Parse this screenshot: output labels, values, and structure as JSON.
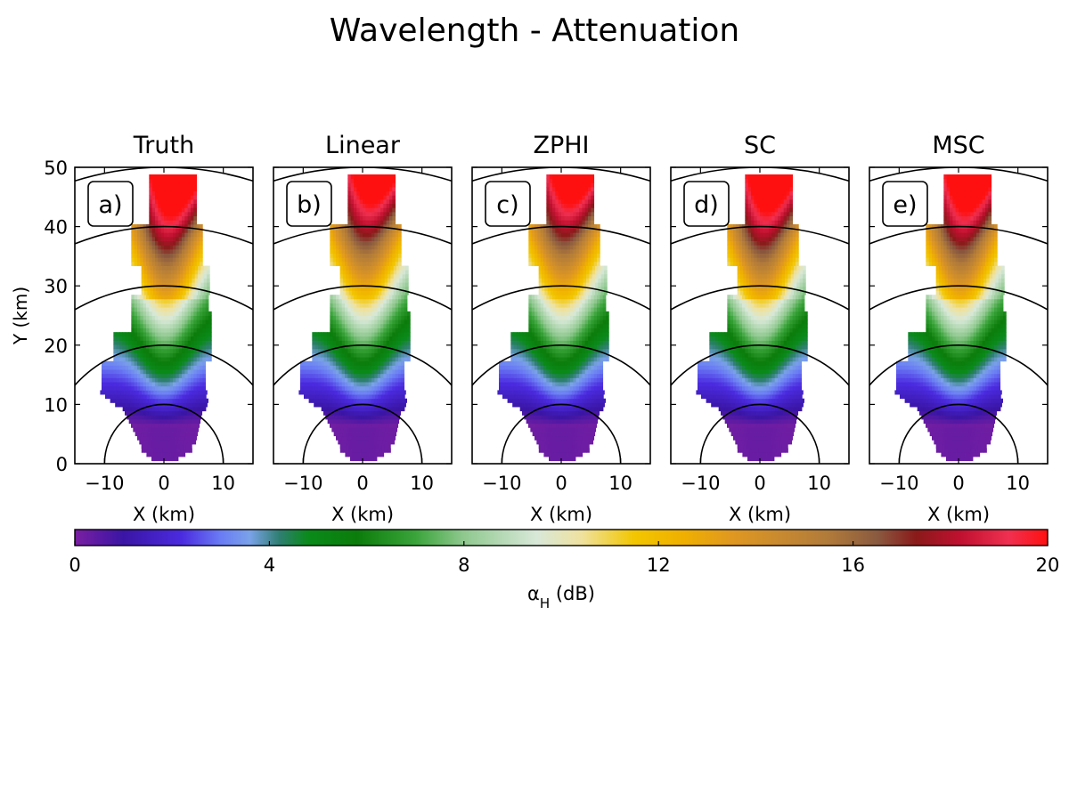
{
  "suptitle": "Wavelength - Attenuation",
  "chart_data": {
    "type": "heatmap",
    "xlim": [
      -15,
      15
    ],
    "ylim": [
      0,
      50
    ],
    "xlabel": "X (km)",
    "ylabel": "Y (km)",
    "xticks": [
      -10,
      0,
      10
    ],
    "yticks": [
      0,
      10,
      20,
      30,
      40,
      50
    ],
    "range_rings_km": [
      10,
      20,
      30,
      40,
      50
    ],
    "panels": [
      {
        "title": "Truth",
        "label": "a)",
        "core_peak": 22
      },
      {
        "title": "Linear",
        "label": "b)",
        "core_peak": 19
      },
      {
        "title": "ZPHI",
        "label": "c)",
        "core_peak": 19
      },
      {
        "title": "SC",
        "label": "d)",
        "core_peak": 21
      },
      {
        "title": "MSC",
        "label": "e)",
        "core_peak": 21
      }
    ],
    "colorbar": {
      "label_main": "α",
      "label_sub": "H",
      "label_unit": " (dB)",
      "min": 0,
      "max": 20,
      "ticks": [
        0,
        4,
        8,
        12,
        16,
        20
      ],
      "colors": [
        [
          0,
          "#7a1fa2"
        ],
        [
          1.0,
          "#3a15a5"
        ],
        [
          2.2,
          "#4b2be0"
        ],
        [
          3.0,
          "#6a7cf4"
        ],
        [
          3.6,
          "#7aa2e8"
        ],
        [
          4.2,
          "#2f7f72"
        ],
        [
          4.8,
          "#0a8a1a"
        ],
        [
          5.8,
          "#0b7c0b"
        ],
        [
          7.0,
          "#3aa43a"
        ],
        [
          8.0,
          "#8fc88f"
        ],
        [
          9.5,
          "#d8e8d8"
        ],
        [
          10.4,
          "#efe2a0"
        ],
        [
          11.5,
          "#f2c600"
        ],
        [
          12.5,
          "#f0b000"
        ],
        [
          13.5,
          "#e09820"
        ],
        [
          14.5,
          "#c88a30"
        ],
        [
          15.5,
          "#b07a3a"
        ],
        [
          16.5,
          "#8a5a40"
        ],
        [
          17.3,
          "#8a1a1a"
        ],
        [
          18.2,
          "#c01030"
        ],
        [
          19.2,
          "#f03050"
        ],
        [
          20,
          "#ff1010"
        ]
      ]
    }
  }
}
